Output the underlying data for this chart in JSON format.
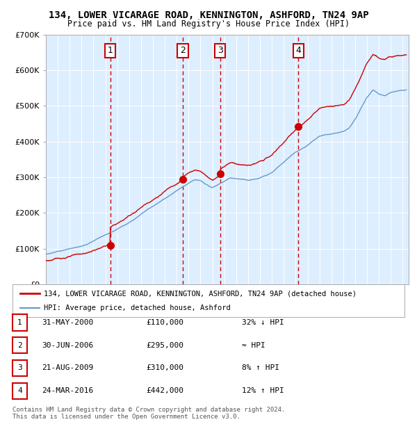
{
  "title1": "134, LOWER VICARAGE ROAD, KENNINGTON, ASHFORD, TN24 9AP",
  "title2": "Price paid vs. HM Land Registry's House Price Index (HPI)",
  "xlabel": "",
  "ylabel": "",
  "ylim": [
    0,
    700000
  ],
  "xlim_start": 1995.0,
  "xlim_end": 2025.5,
  "background_color": "#ffffff",
  "plot_bg_color": "#ddeeff",
  "grid_color": "#ffffff",
  "sale_line_color": "#cc0000",
  "hpi_line_color": "#6699cc",
  "sale_dot_color": "#cc0000",
  "vline_color": "#cc0000",
  "purchases": [
    {
      "label": "1",
      "date": 2000.41,
      "price": 110000,
      "desc": "31-MAY-2000",
      "amount": "£110,000",
      "hpi_rel": "32% ↓ HPI"
    },
    {
      "label": "2",
      "date": 2006.5,
      "price": 295000,
      "desc": "30-JUN-2006",
      "amount": "£295,000",
      "hpi_rel": "≈ HPI"
    },
    {
      "label": "3",
      "date": 2009.64,
      "price": 310000,
      "desc": "21-AUG-2009",
      "amount": "£310,000",
      "hpi_rel": "8% ↑ HPI"
    },
    {
      "label": "4",
      "date": 2016.23,
      "price": 442000,
      "desc": "24-MAR-2016",
      "amount": "£442,000",
      "hpi_rel": "12% ↑ HPI"
    }
  ],
  "legend_line1": "134, LOWER VICARAGE ROAD, KENNINGTON, ASHFORD, TN24 9AP (detached house)",
  "legend_line2": "HPI: Average price, detached house, Ashford",
  "footer": "Contains HM Land Registry data © Crown copyright and database right 2024.\nThis data is licensed under the Open Government Licence v3.0."
}
